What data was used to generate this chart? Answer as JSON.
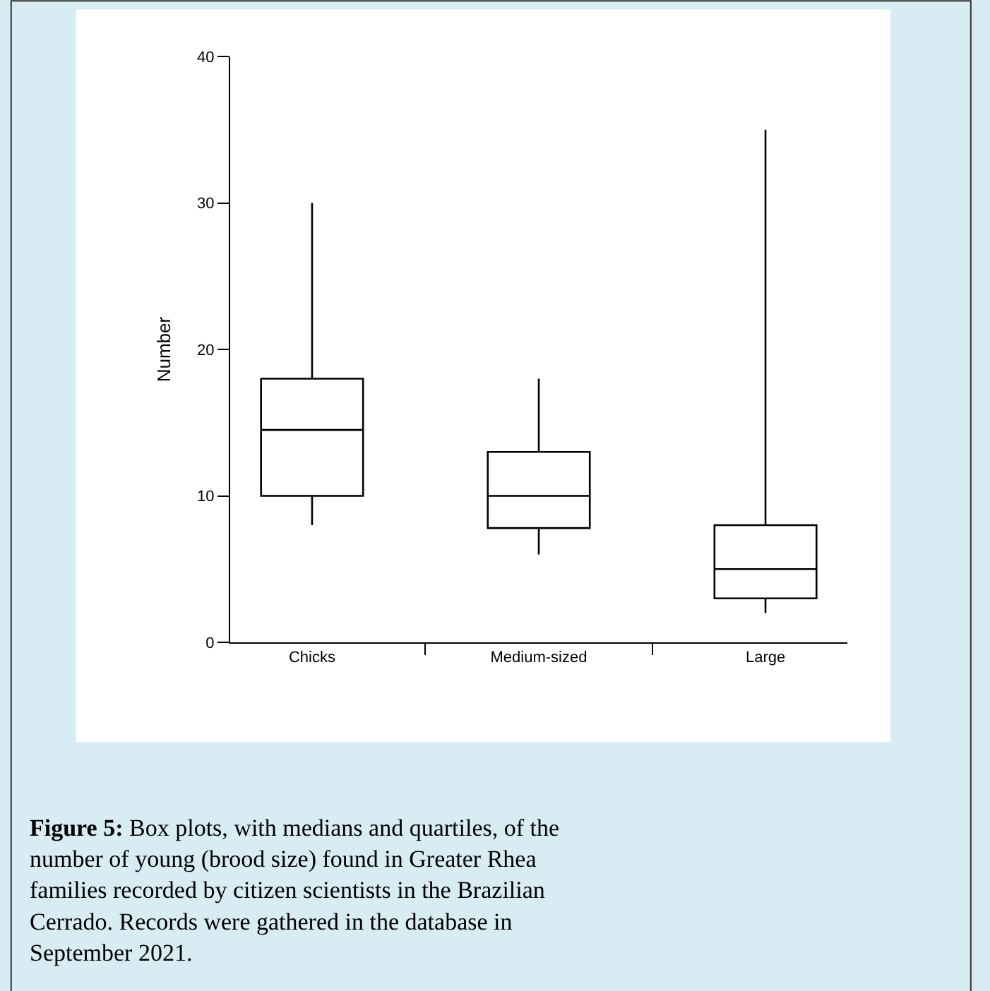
{
  "chart_data": {
    "type": "box",
    "ylabel": "Number",
    "categories": [
      "Chicks",
      "Medium-sized",
      "Large"
    ],
    "boxes": [
      {
        "low": 8,
        "q1": 10,
        "median": 14.5,
        "q3": 18,
        "high": 30
      },
      {
        "low": 6,
        "q1": 7.8,
        "median": 10,
        "q3": 13,
        "high": 18
      },
      {
        "low": 2,
        "q1": 3,
        "median": 5,
        "q3": 8,
        "high": 35
      }
    ],
    "color": "#000000",
    "ylim": [
      0,
      40
    ],
    "yticks": [
      0,
      10,
      20,
      30,
      40
    ],
    "annotations": [
      "Figure 5: Box plots, with medians and quartiles, of the number of young (brood size) found in Greater Rhea families recorded by citizen scientists in the Brazilian Cerrado. Records were gathered in the database in September 2021."
    ]
  }
}
